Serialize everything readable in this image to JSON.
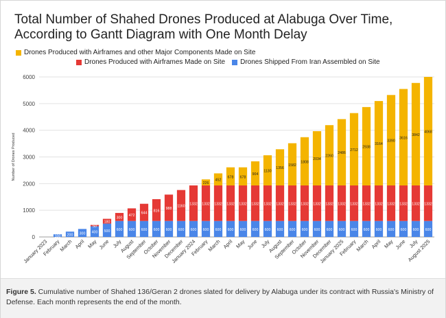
{
  "figure": {
    "caption_label": "Figure 5.",
    "caption_text": " Cumulative number of Shahed 136/Geran 2 drones slated for delivery by Alabuga under its contract with Russia's Ministry of Defense. Each month represents the end of the month."
  },
  "chart_data": {
    "type": "bar",
    "stacked": true,
    "title": "Total Number of Shahed Drones Produced at Alabuga Over Time, According to Gantt Diagram with One Month Delay",
    "title_lines": [
      "Total Number of Shahed Drones Produced at Alabuga Over Time,",
      "According to Gantt Diagram with One Month Delay"
    ],
    "xlabel": "",
    "ylabel": "Number of Drones Produced",
    "ylim": [
      0,
      6000
    ],
    "yticks": [
      0,
      1000,
      2000,
      3000,
      4000,
      5000,
      6000
    ],
    "grid": true,
    "legend_position": "top",
    "categories": [
      "January 2023",
      "February",
      "March",
      "April",
      "May",
      "June",
      "July",
      "August",
      "September",
      "October",
      "November",
      "December",
      "January 2024",
      "February",
      "March",
      "April",
      "May",
      "June",
      "July",
      "August",
      "September",
      "October",
      "November",
      "December",
      "January 2025",
      "February",
      "March",
      "April",
      "May",
      "June",
      "July",
      "August 2025"
    ],
    "series": [
      {
        "name": "Drones Shipped From Iran Assembled on Site",
        "color": "#4a86e8",
        "values": [
          0,
          100,
          200,
          300,
          400,
          500,
          600,
          600,
          600,
          600,
          600,
          600,
          600,
          600,
          600,
          600,
          600,
          600,
          600,
          600,
          600,
          600,
          600,
          600,
          600,
          600,
          600,
          600,
          600,
          600,
          600,
          600
        ],
        "labels": [
          "",
          "100",
          "200",
          "300",
          "400",
          "500",
          "600",
          "600",
          "600",
          "600",
          "600",
          "600",
          "600",
          "600",
          "600",
          "600",
          "600",
          "600",
          "600",
          "600",
          "600",
          "600",
          "600",
          "600",
          "600",
          "600",
          "600",
          "600",
          "600",
          "600",
          "600",
          "600"
        ]
      },
      {
        "name": "Drones Produced with Airframes Made on Site",
        "color": "#e53935",
        "values": [
          0,
          0,
          0,
          0,
          50,
          180,
          300,
          472,
          644,
          816,
          988,
          1160,
          1332,
          1332,
          1332,
          1332,
          1332,
          1332,
          1332,
          1332,
          1332,
          1332,
          1332,
          1332,
          1332,
          1332,
          1332,
          1332,
          1332,
          1332,
          1332,
          1332
        ],
        "labels": [
          "",
          "",
          "",
          "",
          "50",
          "180",
          "300",
          "472",
          "644",
          "816",
          "988",
          "1160",
          "1332",
          "1332",
          "1332",
          "1332",
          "1332",
          "1332",
          "1332",
          "1332",
          "1332",
          "1332",
          "1332",
          "1332",
          "1332",
          "1332",
          "1332",
          "1332",
          "1332",
          "1332",
          "1332",
          "1332"
        ]
      },
      {
        "name": "Drones Produced with Airframes and other Major Components Made on Site",
        "color": "#f4b400",
        "values": [
          0,
          0,
          0,
          0,
          0,
          0,
          0,
          0,
          0,
          0,
          0,
          0,
          0,
          226,
          452,
          678,
          678,
          904,
          1130,
          1356,
          1582,
          1808,
          2034,
          2260,
          2486,
          2712,
          2938,
          3164,
          3390,
          3616,
          3842,
          4068
        ],
        "labels": [
          "",
          "",
          "",
          "",
          "",
          "",
          "",
          "",
          "",
          "",
          "",
          "",
          "",
          "226",
          "452",
          "678",
          "678",
          "904",
          "1130",
          "1356",
          "1582",
          "1808",
          "2034",
          "2260",
          "2486",
          "2712",
          "2938",
          "3164",
          "3390",
          "3616",
          "3842",
          "4068"
        ]
      }
    ]
  }
}
